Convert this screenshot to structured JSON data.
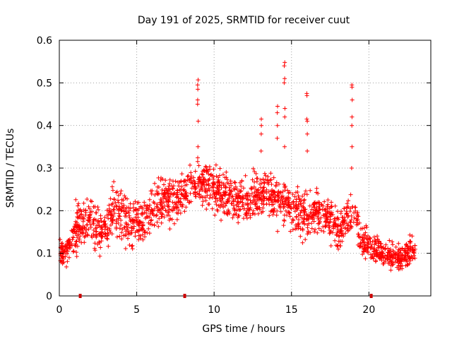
{
  "chart_data": {
    "type": "scatter",
    "title": "Day 191 of 2025, SRMTID for receiver cuut",
    "xlabel": "GPS time / hours",
    "ylabel": "SRMTID / TECUs",
    "xlim": [
      0,
      24
    ],
    "ylim": [
      0,
      0.6
    ],
    "x_ticks": [
      0,
      5,
      10,
      15,
      20
    ],
    "x_tick_labels": [
      "0",
      "5",
      "10",
      "15",
      "20"
    ],
    "y_ticks": [
      0,
      0.1,
      0.2,
      0.3,
      0.4,
      0.5,
      0.6
    ],
    "y_tick_labels": [
      "0",
      "0.1",
      "0.2",
      "0.3",
      "0.4",
      "0.5",
      "0.6"
    ],
    "grid": true,
    "marker": "+",
    "color": "#ff0000",
    "gap_markers_x": [
      1.35,
      8.1,
      20.15
    ],
    "trend": [
      [
        0.0,
        0.1
      ],
      [
        0.5,
        0.11
      ],
      [
        1.0,
        0.15
      ],
      [
        1.5,
        0.17
      ],
      [
        2.0,
        0.18
      ],
      [
        2.5,
        0.16
      ],
      [
        3.0,
        0.15
      ],
      [
        3.5,
        0.2
      ],
      [
        4.0,
        0.19
      ],
      [
        4.5,
        0.17
      ],
      [
        5.0,
        0.17
      ],
      [
        5.5,
        0.18
      ],
      [
        6.0,
        0.2
      ],
      [
        6.5,
        0.22
      ],
      [
        7.0,
        0.23
      ],
      [
        7.5,
        0.22
      ],
      [
        8.0,
        0.24
      ],
      [
        8.5,
        0.26
      ],
      [
        9.0,
        0.27
      ],
      [
        9.5,
        0.26
      ],
      [
        10.0,
        0.25
      ],
      [
        10.5,
        0.24
      ],
      [
        11.0,
        0.23
      ],
      [
        11.5,
        0.22
      ],
      [
        12.0,
        0.22
      ],
      [
        12.5,
        0.23
      ],
      [
        13.0,
        0.24
      ],
      [
        13.5,
        0.24
      ],
      [
        14.0,
        0.23
      ],
      [
        14.5,
        0.22
      ],
      [
        15.0,
        0.21
      ],
      [
        15.5,
        0.2
      ],
      [
        16.0,
        0.19
      ],
      [
        16.5,
        0.2
      ],
      [
        17.0,
        0.19
      ],
      [
        17.5,
        0.18
      ],
      [
        18.0,
        0.16
      ],
      [
        18.5,
        0.18
      ],
      [
        19.0,
        0.2
      ],
      [
        19.5,
        0.13
      ],
      [
        20.0,
        0.12
      ],
      [
        20.5,
        0.11
      ],
      [
        21.0,
        0.1
      ],
      [
        21.5,
        0.09
      ],
      [
        22.0,
        0.09
      ],
      [
        22.5,
        0.1
      ],
      [
        23.0,
        0.11
      ]
    ],
    "spikes": [
      {
        "x": 8.95,
        "values": [
          0.507,
          0.495,
          0.485,
          0.46,
          0.45,
          0.41,
          0.35
        ]
      },
      {
        "x": 14.55,
        "values": [
          0.548,
          0.54,
          0.51,
          0.5,
          0.44,
          0.42,
          0.35
        ]
      },
      {
        "x": 16.0,
        "values": [
          0.475,
          0.47,
          0.415,
          0.41,
          0.38,
          0.34
        ]
      },
      {
        "x": 18.9,
        "values": [
          0.495,
          0.49,
          0.46,
          0.42,
          0.4,
          0.35,
          0.3
        ]
      },
      {
        "x": 13.05,
        "values": [
          0.415,
          0.4,
          0.38,
          0.34
        ]
      },
      {
        "x": 14.1,
        "values": [
          0.445,
          0.43,
          0.4,
          0.37
        ]
      }
    ]
  }
}
